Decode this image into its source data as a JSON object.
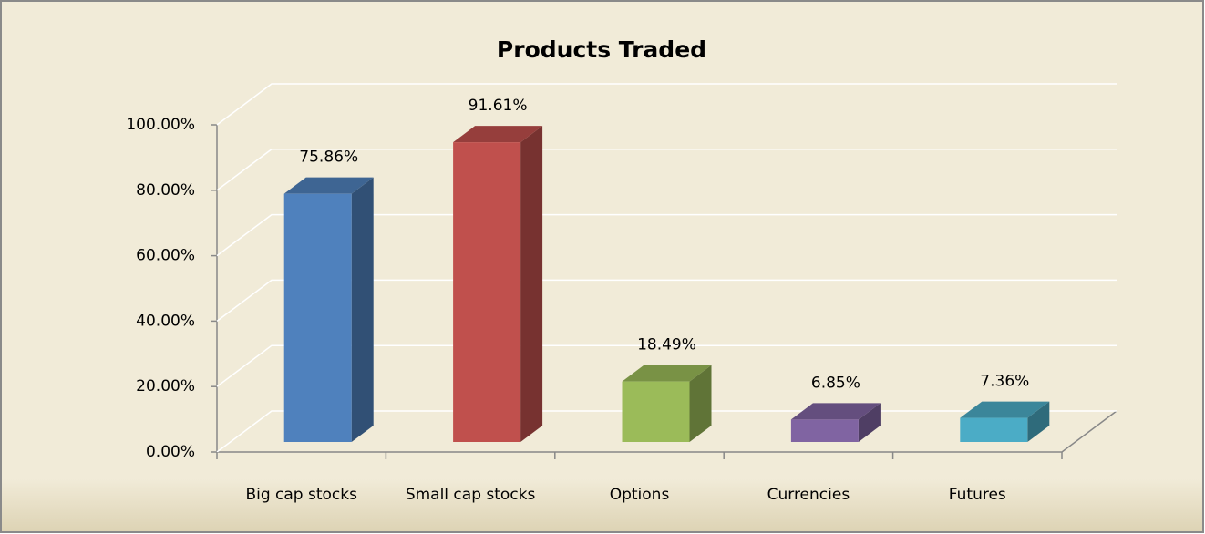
{
  "chart_data": {
    "type": "bar3d",
    "title": "Products Traded",
    "categories": [
      "Big cap stocks",
      "Small cap stocks",
      "Options",
      "Currencies",
      "Futures"
    ],
    "values": [
      75.86,
      91.61,
      18.49,
      6.85,
      7.36
    ],
    "value_labels": [
      "75.86%",
      "91.61%",
      "18.49%",
      "6.85%",
      "7.36%"
    ],
    "colors": [
      "#4f81bd",
      "#c0504d",
      "#9bbb59",
      "#8064a2",
      "#4bacc6"
    ],
    "ylim": [
      0,
      100
    ],
    "yticks": [
      {
        "value": 0,
        "label": "0.00%"
      },
      {
        "value": 20,
        "label": "20.00%"
      },
      {
        "value": 40,
        "label": "40.00%"
      },
      {
        "value": 60,
        "label": "60.00%"
      },
      {
        "value": 80,
        "label": "80.00%"
      },
      {
        "value": 100,
        "label": "100.00%"
      }
    ],
    "grid": true
  }
}
